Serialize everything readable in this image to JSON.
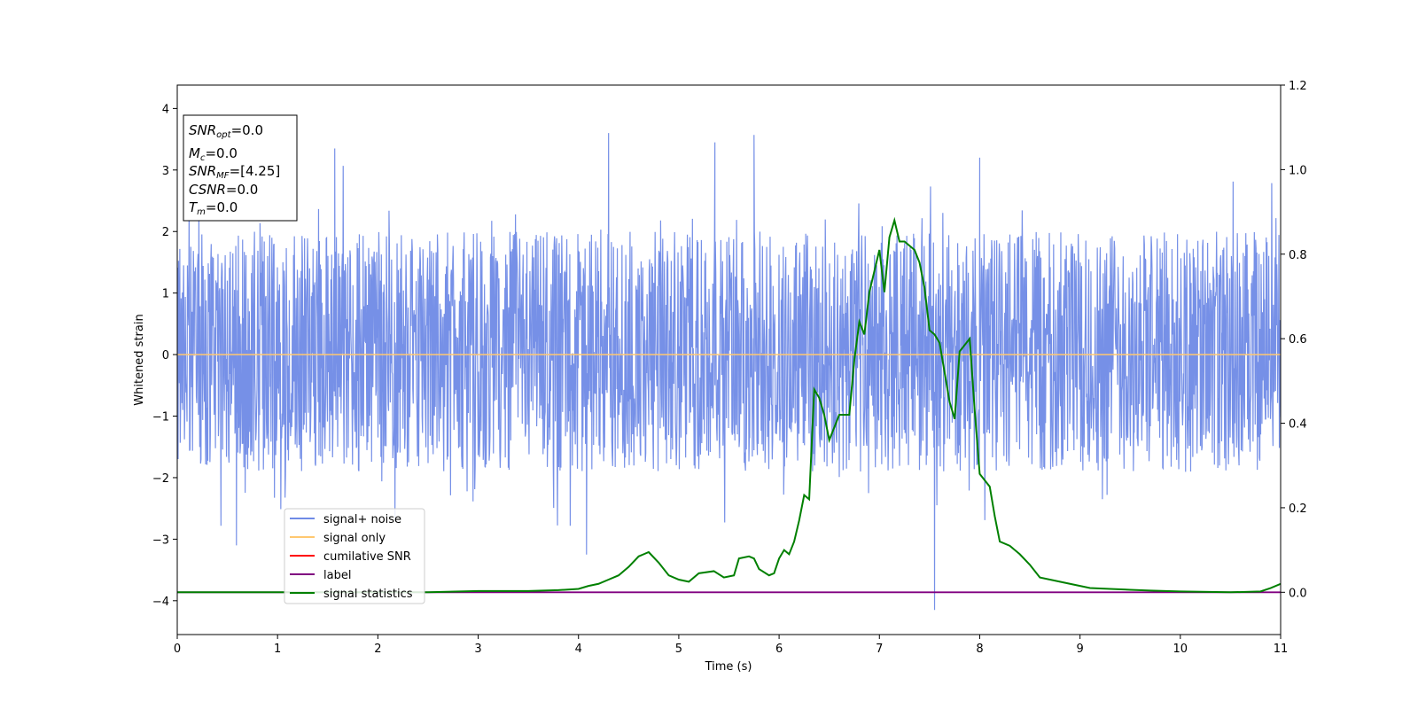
{
  "chart_data": {
    "type": "line",
    "title": "",
    "xlabel": "Time (s)",
    "ylabel": "Whitened strain",
    "y2label": "",
    "xlim": [
      0,
      11
    ],
    "ylim": [
      -4.55,
      4.38
    ],
    "y2lim": [
      -0.1,
      1.2
    ],
    "x_ticks": [
      0,
      1,
      2,
      3,
      4,
      5,
      6,
      7,
      8,
      9,
      10,
      11
    ],
    "y_ticks": [
      -4,
      -3,
      -2,
      -1,
      0,
      1,
      2,
      3,
      4
    ],
    "y2_ticks": [
      0.0,
      0.2,
      0.4,
      0.6,
      0.8,
      1.0,
      1.2
    ],
    "grid": false,
    "legend_position": "lower-left",
    "info_box": {
      "lines": [
        {
          "main": "SNR",
          "sub": "opt",
          "value": "=0.0"
        },
        {
          "main": "M",
          "sub": "c",
          "value": "=0.0"
        },
        {
          "main": "SNR",
          "sub": "MF",
          "value": "=[4.25]"
        },
        {
          "main": "CSNR",
          "sub": "",
          "value": "=0.0"
        },
        {
          "main": "T",
          "sub": "m",
          "value": "=0.0"
        }
      ]
    },
    "series": [
      {
        "name": "signal+ noise",
        "axis": "left",
        "color": "#6f8ae6",
        "noise_band": {
          "typical_min": -1.9,
          "typical_max": 2.0,
          "peak_min": -4.15,
          "peak_max": 3.6,
          "notable_spikes": [
            {
              "x": 0.59,
              "y": -3.1
            },
            {
              "x": 1.57,
              "y": 3.35
            },
            {
              "x": 4.3,
              "y": 3.6
            },
            {
              "x": 4.08,
              "y": -3.25
            },
            {
              "x": 5.36,
              "y": 3.45
            },
            {
              "x": 5.75,
              "y": 3.57
            },
            {
              "x": 7.55,
              "y": -4.15
            },
            {
              "x": 8.0,
              "y": 3.2
            }
          ]
        }
      },
      {
        "name": "signal only",
        "axis": "left",
        "color": "#ffc870",
        "x": [
          0,
          11
        ],
        "y": [
          0,
          0
        ]
      },
      {
        "name": "cumilative SNR",
        "axis": "right",
        "color": "#ff0000",
        "x": [],
        "y": []
      },
      {
        "name": "label",
        "axis": "right",
        "color": "#800080",
        "x": [
          0,
          11
        ],
        "y": [
          0,
          0
        ]
      },
      {
        "name": "signal statistics",
        "axis": "right",
        "color": "#008000",
        "x": [
          0,
          0.5,
          1,
          1.5,
          2,
          2.5,
          3,
          3.5,
          3.8,
          4.0,
          4.1,
          4.2,
          4.3,
          4.4,
          4.5,
          4.6,
          4.65,
          4.7,
          4.8,
          4.9,
          5.0,
          5.1,
          5.2,
          5.35,
          5.45,
          5.55,
          5.6,
          5.7,
          5.75,
          5.8,
          5.9,
          5.95,
          6.0,
          6.05,
          6.1,
          6.15,
          6.2,
          6.25,
          6.3,
          6.35,
          6.4,
          6.45,
          6.5,
          6.6,
          6.7,
          6.75,
          6.8,
          6.85,
          6.9,
          7.0,
          7.05,
          7.1,
          7.15,
          7.2,
          7.25,
          7.35,
          7.4,
          7.45,
          7.5,
          7.55,
          7.6,
          7.7,
          7.75,
          7.8,
          7.9,
          7.95,
          8.0,
          8.1,
          8.15,
          8.2,
          8.3,
          8.4,
          8.5,
          8.6,
          8.8,
          9.0,
          9.1,
          9.3,
          9.5,
          9.7,
          10.0,
          10.5,
          10.8,
          10.9,
          11.0
        ],
        "y": [
          0.0,
          0.0,
          0.0,
          0.0,
          0.0,
          0.0,
          0.003,
          0.003,
          0.005,
          0.008,
          0.015,
          0.02,
          0.03,
          0.04,
          0.06,
          0.085,
          0.09,
          0.095,
          0.07,
          0.04,
          0.03,
          0.025,
          0.045,
          0.05,
          0.035,
          0.04,
          0.08,
          0.085,
          0.08,
          0.055,
          0.04,
          0.045,
          0.08,
          0.1,
          0.09,
          0.12,
          0.17,
          0.23,
          0.22,
          0.48,
          0.46,
          0.42,
          0.36,
          0.42,
          0.42,
          0.55,
          0.64,
          0.61,
          0.71,
          0.81,
          0.71,
          0.84,
          0.88,
          0.83,
          0.83,
          0.81,
          0.78,
          0.72,
          0.62,
          0.61,
          0.59,
          0.45,
          0.41,
          0.57,
          0.6,
          0.43,
          0.28,
          0.25,
          0.18,
          0.12,
          0.11,
          0.09,
          0.065,
          0.035,
          0.025,
          0.015,
          0.01,
          0.008,
          0.006,
          0.004,
          0.002,
          0.0,
          0.002,
          0.01,
          0.02
        ]
      }
    ]
  }
}
